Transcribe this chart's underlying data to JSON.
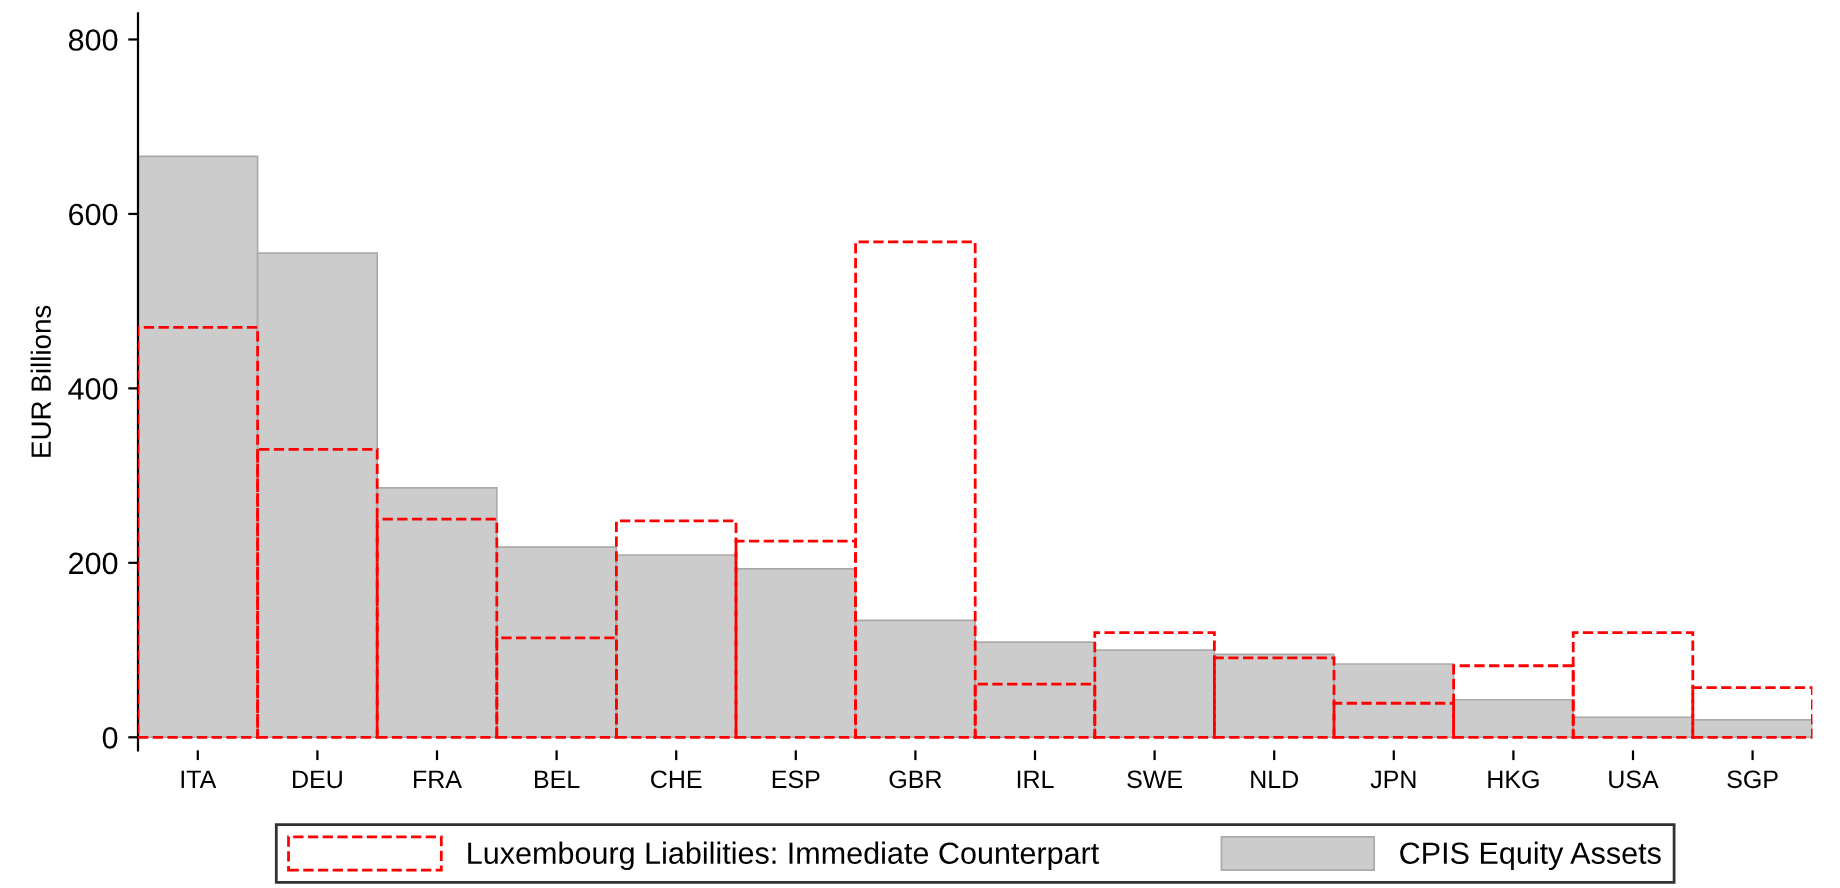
{
  "chart_data": {
    "type": "bar",
    "ylabel": "EUR Billions",
    "categories": [
      "ITA",
      "DEU",
      "FRA",
      "BEL",
      "CHE",
      "ESP",
      "GBR",
      "IRL",
      "SWE",
      "NLD",
      "JPN",
      "HKG",
      "USA",
      "SGP"
    ],
    "series": [
      {
        "name": "CPIS Equity Assets",
        "color": "#cccccc",
        "line_style": "solid",
        "values": [
          666,
          555,
          286,
          218,
          209,
          193,
          134,
          109,
          100,
          95,
          84,
          43,
          23,
          20
        ]
      },
      {
        "name": "Luxembourg Liabilities: Immediate Counterpart",
        "color": "#ff0000",
        "line_style": "dashed",
        "values": [
          470,
          330,
          250,
          114,
          248,
          225,
          568,
          61,
          120,
          91,
          39,
          82,
          120,
          57
        ]
      }
    ],
    "ylim": [
      -15,
      830
    ],
    "yticks": [
      0,
      200,
      400,
      600,
      800
    ],
    "grid": false,
    "legend": "bottom"
  }
}
